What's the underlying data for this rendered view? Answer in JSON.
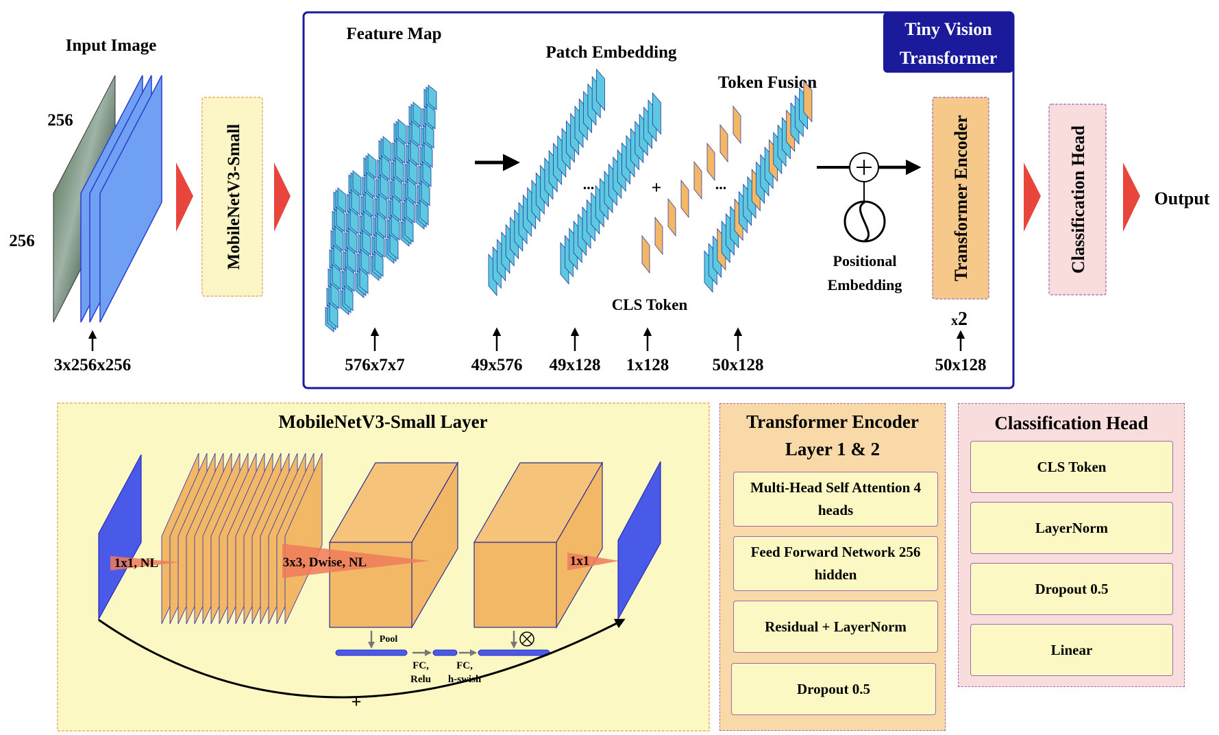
{
  "top": {
    "input_image_label": "Input Image",
    "input_height": "256",
    "input_width": "256",
    "input_dims": "3x256x256",
    "mobilenet_label": "MobileNetV3-Small",
    "vit_title": "Tiny Vision\nTransformer",
    "feature_map_label": "Feature Map",
    "feature_map_dims": "576x7x7",
    "patch_embedding_label": "Patch Embedding",
    "patch_dims_1": "49x576",
    "patch_dims_2": "49x128",
    "ellipsis": "...",
    "plus": "+",
    "cls_token_label": "CLS Token",
    "cls_dims": "1x128",
    "token_fusion_label": "Token Fusion",
    "fusion_dims": "50x128",
    "positional_embedding_label": "Positional\nEmbedding",
    "transformer_encoder_label": "Transformer Encoder",
    "repeat_prefix": "x",
    "repeat_count": "2",
    "encoder_dims": "50x128",
    "classification_head_label": "Classification Head",
    "output_label": "Output"
  },
  "mobilenet_layer": {
    "title": "MobileNetV3-Small Layer",
    "conv1_label": "1x1, NL",
    "dwise_label": "3x3, Dwise, NL",
    "conv2_label": "1x1",
    "pool_label": "Pool",
    "fc_relu_label": "FC,\nRelu",
    "fc_hswish_label": "FC,\nh-swish",
    "residual_plus": "+"
  },
  "encoder_layer": {
    "title": "Transformer Encoder\nLayer 1 & 2",
    "items": [
      "Multi-Head Self Attention 4 heads",
      "Feed Forward Network 256 hidden",
      "Residual + LayerNorm",
      "Dropout 0.5"
    ]
  },
  "classification_head": {
    "title": "Classification Head",
    "items": [
      "CLS Token",
      "LayerNorm",
      "Dropout 0.5",
      "Linear"
    ]
  },
  "colors": {
    "patch_blue": "#5ec8e0",
    "token_orange": "#f2b866",
    "vit_border": "#1a1a9a",
    "arrow_red": "#e8453c",
    "mobilenet_panel": "#fcf8c4",
    "encoder_panel": "#f9d9a8",
    "head_panel": "#f9dcdc",
    "input_blue": "#6fa0f2"
  }
}
